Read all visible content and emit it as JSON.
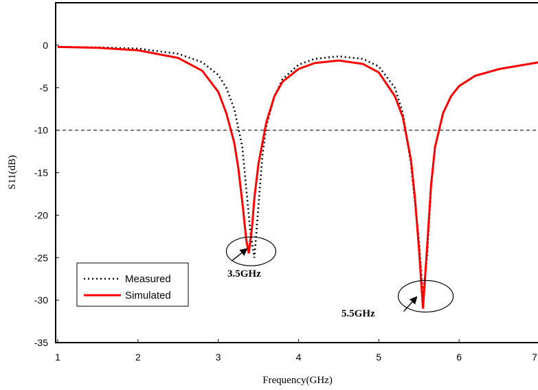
{
  "chart_data": {
    "type": "line",
    "title": "",
    "xlabel": "Frequency(GHz)",
    "ylabel": "S11(dB)",
    "xlim": [
      1,
      7
    ],
    "ylim": [
      -35,
      5
    ],
    "x_ticks": [
      "1",
      "2",
      "3",
      "4",
      "5",
      "6",
      "7"
    ],
    "y_ticks": [
      "0",
      "-5",
      "-10",
      "-15",
      "-20",
      "-25",
      "-30",
      "-35"
    ],
    "grid": false,
    "legend_position": "bottom-left",
    "reference_line": {
      "y": -10,
      "style": "dashed"
    },
    "series": [
      {
        "name": "Measured",
        "color": "#000000",
        "style": "dotted",
        "x": [
          1.0,
          1.5,
          2.0,
          2.5,
          2.8,
          3.0,
          3.1,
          3.2,
          3.3,
          3.35,
          3.4,
          3.45,
          3.5,
          3.55,
          3.6,
          3.7,
          3.8,
          4.0,
          4.2,
          4.5,
          4.8,
          5.0,
          5.2,
          5.3,
          5.4,
          5.5,
          5.55,
          5.6,
          5.65,
          5.7,
          5.8,
          5.9,
          6.0,
          6.2,
          6.5,
          7.0
        ],
        "y": [
          -0.2,
          -0.25,
          -0.4,
          -1.0,
          -2.0,
          -3.5,
          -5.0,
          -7.5,
          -12.0,
          -17.0,
          -22.0,
          -25.0,
          -19.0,
          -13.0,
          -9.5,
          -6.0,
          -4.0,
          -2.3,
          -1.6,
          -1.3,
          -1.6,
          -2.5,
          -5.0,
          -8.0,
          -14.0,
          -23.0,
          -29.5,
          -25.0,
          -17.0,
          -12.0,
          -8.0,
          -6.0,
          -4.8,
          -3.6,
          -2.8,
          -2.0
        ]
      },
      {
        "name": "Simulated",
        "color": "#ff0000",
        "style": "solid",
        "x": [
          1.0,
          1.5,
          2.0,
          2.5,
          2.8,
          3.0,
          3.1,
          3.2,
          3.25,
          3.3,
          3.35,
          3.38,
          3.42,
          3.45,
          3.5,
          3.6,
          3.7,
          3.8,
          4.0,
          4.2,
          4.5,
          4.8,
          5.0,
          5.2,
          5.3,
          5.4,
          5.45,
          5.5,
          5.55,
          5.6,
          5.65,
          5.7,
          5.8,
          5.9,
          6.0,
          6.2,
          6.5,
          7.0
        ],
        "y": [
          -0.2,
          -0.3,
          -0.6,
          -1.5,
          -3.0,
          -5.5,
          -8.0,
          -11.5,
          -14.5,
          -18.5,
          -23.0,
          -24.5,
          -21.5,
          -18.0,
          -14.0,
          -9.0,
          -6.0,
          -4.3,
          -2.8,
          -2.1,
          -1.8,
          -2.2,
          -3.2,
          -6.0,
          -8.5,
          -13.5,
          -18.0,
          -24.0,
          -31.0,
          -24.0,
          -16.5,
          -12.0,
          -8.0,
          -6.0,
          -4.8,
          -3.6,
          -2.8,
          -2.0
        ]
      }
    ],
    "annotations": [
      {
        "text": "3.5GHz",
        "x": 3.4,
        "y": -24.5
      },
      {
        "text": "5.5GHz",
        "x": 5.55,
        "y": -31.0
      }
    ]
  }
}
